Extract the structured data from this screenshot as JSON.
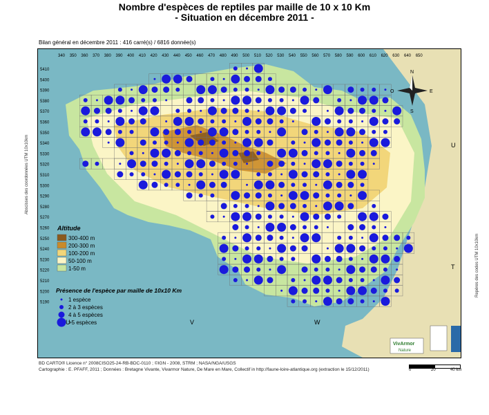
{
  "title_line1": "Nombre d'espèces de reptiles par maille de 10 x 10 Km",
  "title_line2": "- Situation en décembre 2011 -",
  "summary": "Bilan général en décembre 2011 :  416 carré(s) / 6816 donnée(s)",
  "x_ticks": [
    "340",
    "350",
    "360",
    "370",
    "380",
    "390",
    "400",
    "410",
    "420",
    "430",
    "440",
    "450",
    "460",
    "470",
    "480",
    "490",
    "500",
    "510",
    "520",
    "530",
    "540",
    "550",
    "560",
    "570",
    "580",
    "590",
    "600",
    "610",
    "620",
    "630",
    "640",
    "650"
  ],
  "y_ticks": [
    "5410",
    "5400",
    "5390",
    "5380",
    "5370",
    "5360",
    "5350",
    "5340",
    "5330",
    "5320",
    "5310",
    "5300",
    "5290",
    "5280",
    "5270",
    "5260",
    "5250",
    "5240",
    "5230",
    "5220",
    "5210",
    "5200",
    "5190"
  ],
  "zone_letters": [
    "U",
    "V",
    "W",
    "U",
    "T"
  ],
  "compass": {
    "north": "N",
    "south": "S",
    "east": "E",
    "west": "O"
  },
  "altitude_legend": {
    "title": "Altitude",
    "classes": [
      {
        "label": "300-400 m",
        "color": "#8a5a1e"
      },
      {
        "label": "200-300 m",
        "color": "#c98a2a"
      },
      {
        "label": "100-200 m",
        "color": "#f2d67a"
      },
      {
        "label": "50-100 m",
        "color": "#fbf5c6"
      },
      {
        "label": "1-50 m",
        "color": "#c8e6a0"
      }
    ]
  },
  "presence_legend": {
    "title": "Présence de l'espèce par maille de 10x10 Km",
    "classes": [
      {
        "label": "1 espèce",
        "size": 1
      },
      {
        "label": "2 à 3 espèces",
        "size": 2
      },
      {
        "label": "4 à 5 espèces",
        "size": 3
      },
      {
        "label": ">5 espèces",
        "size": 4
      }
    ]
  },
  "logos": {
    "vivarmor_line1": "VivArmor",
    "vivarmor_line2": "Nature"
  },
  "side_left": "Abscisses des coordonnées UTM 10x10km",
  "side_right": "Repères des codes UTM 10x10km",
  "credit_line1": "BD CARTO® Licence n° 2008CISO25-24-RB-BDC-0110 ; ©IGN - 2008, STRM ; NASA/NGA/USGS",
  "credit_line2": "Cartographie : E. PFAFF, 2011 ; Données : Bretagne Vivante, Vivarmor Nature, De Mare en Mare, Collectif in http://faune-loire-atlantique.org (extraction le 15/12/2011)",
  "scale_labels": [
    "0",
    "20",
    "40 km"
  ],
  "colors": {
    "sea": "#7ab8c4",
    "dot": "#1a1adc",
    "grid": "#6e6e6e",
    "outside_land": "#e8e0b4"
  }
}
